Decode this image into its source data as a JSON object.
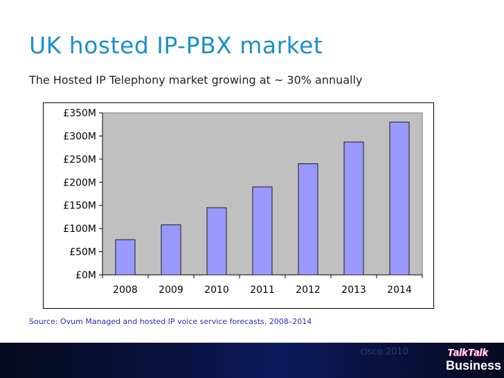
{
  "slide": {
    "title": "UK hosted IP-PBX market",
    "subtitle": "The Hosted IP Telephony market growing at ~ 30% annually",
    "source": "Source: Ovum Managed and hosted IP voice service forecasts, 2008–2014",
    "footer_text": "cisco 2010",
    "logo_line1": "TalkTalk",
    "logo_line2": "Business"
  },
  "chart_data": {
    "type": "bar",
    "title": "",
    "xlabel": "",
    "ylabel": "",
    "categories": [
      "2008",
      "2009",
      "2010",
      "2011",
      "2012",
      "2013",
      "2014"
    ],
    "values": [
      76,
      108,
      145,
      190,
      240,
      287,
      330
    ],
    "ylim": [
      0,
      350
    ],
    "yticks": [
      0,
      50,
      100,
      150,
      200,
      250,
      300,
      350
    ],
    "ytick_labels": [
      "£0M",
      "£50M",
      "£100M",
      "£150M",
      "£200M",
      "£250M",
      "£300M",
      "£350M"
    ],
    "grid": false,
    "legend": "none",
    "colors": {
      "bar_fill": "#9999ff",
      "bar_stroke": "#1a1a1a",
      "plot_background": "#c0c0c0"
    }
  }
}
